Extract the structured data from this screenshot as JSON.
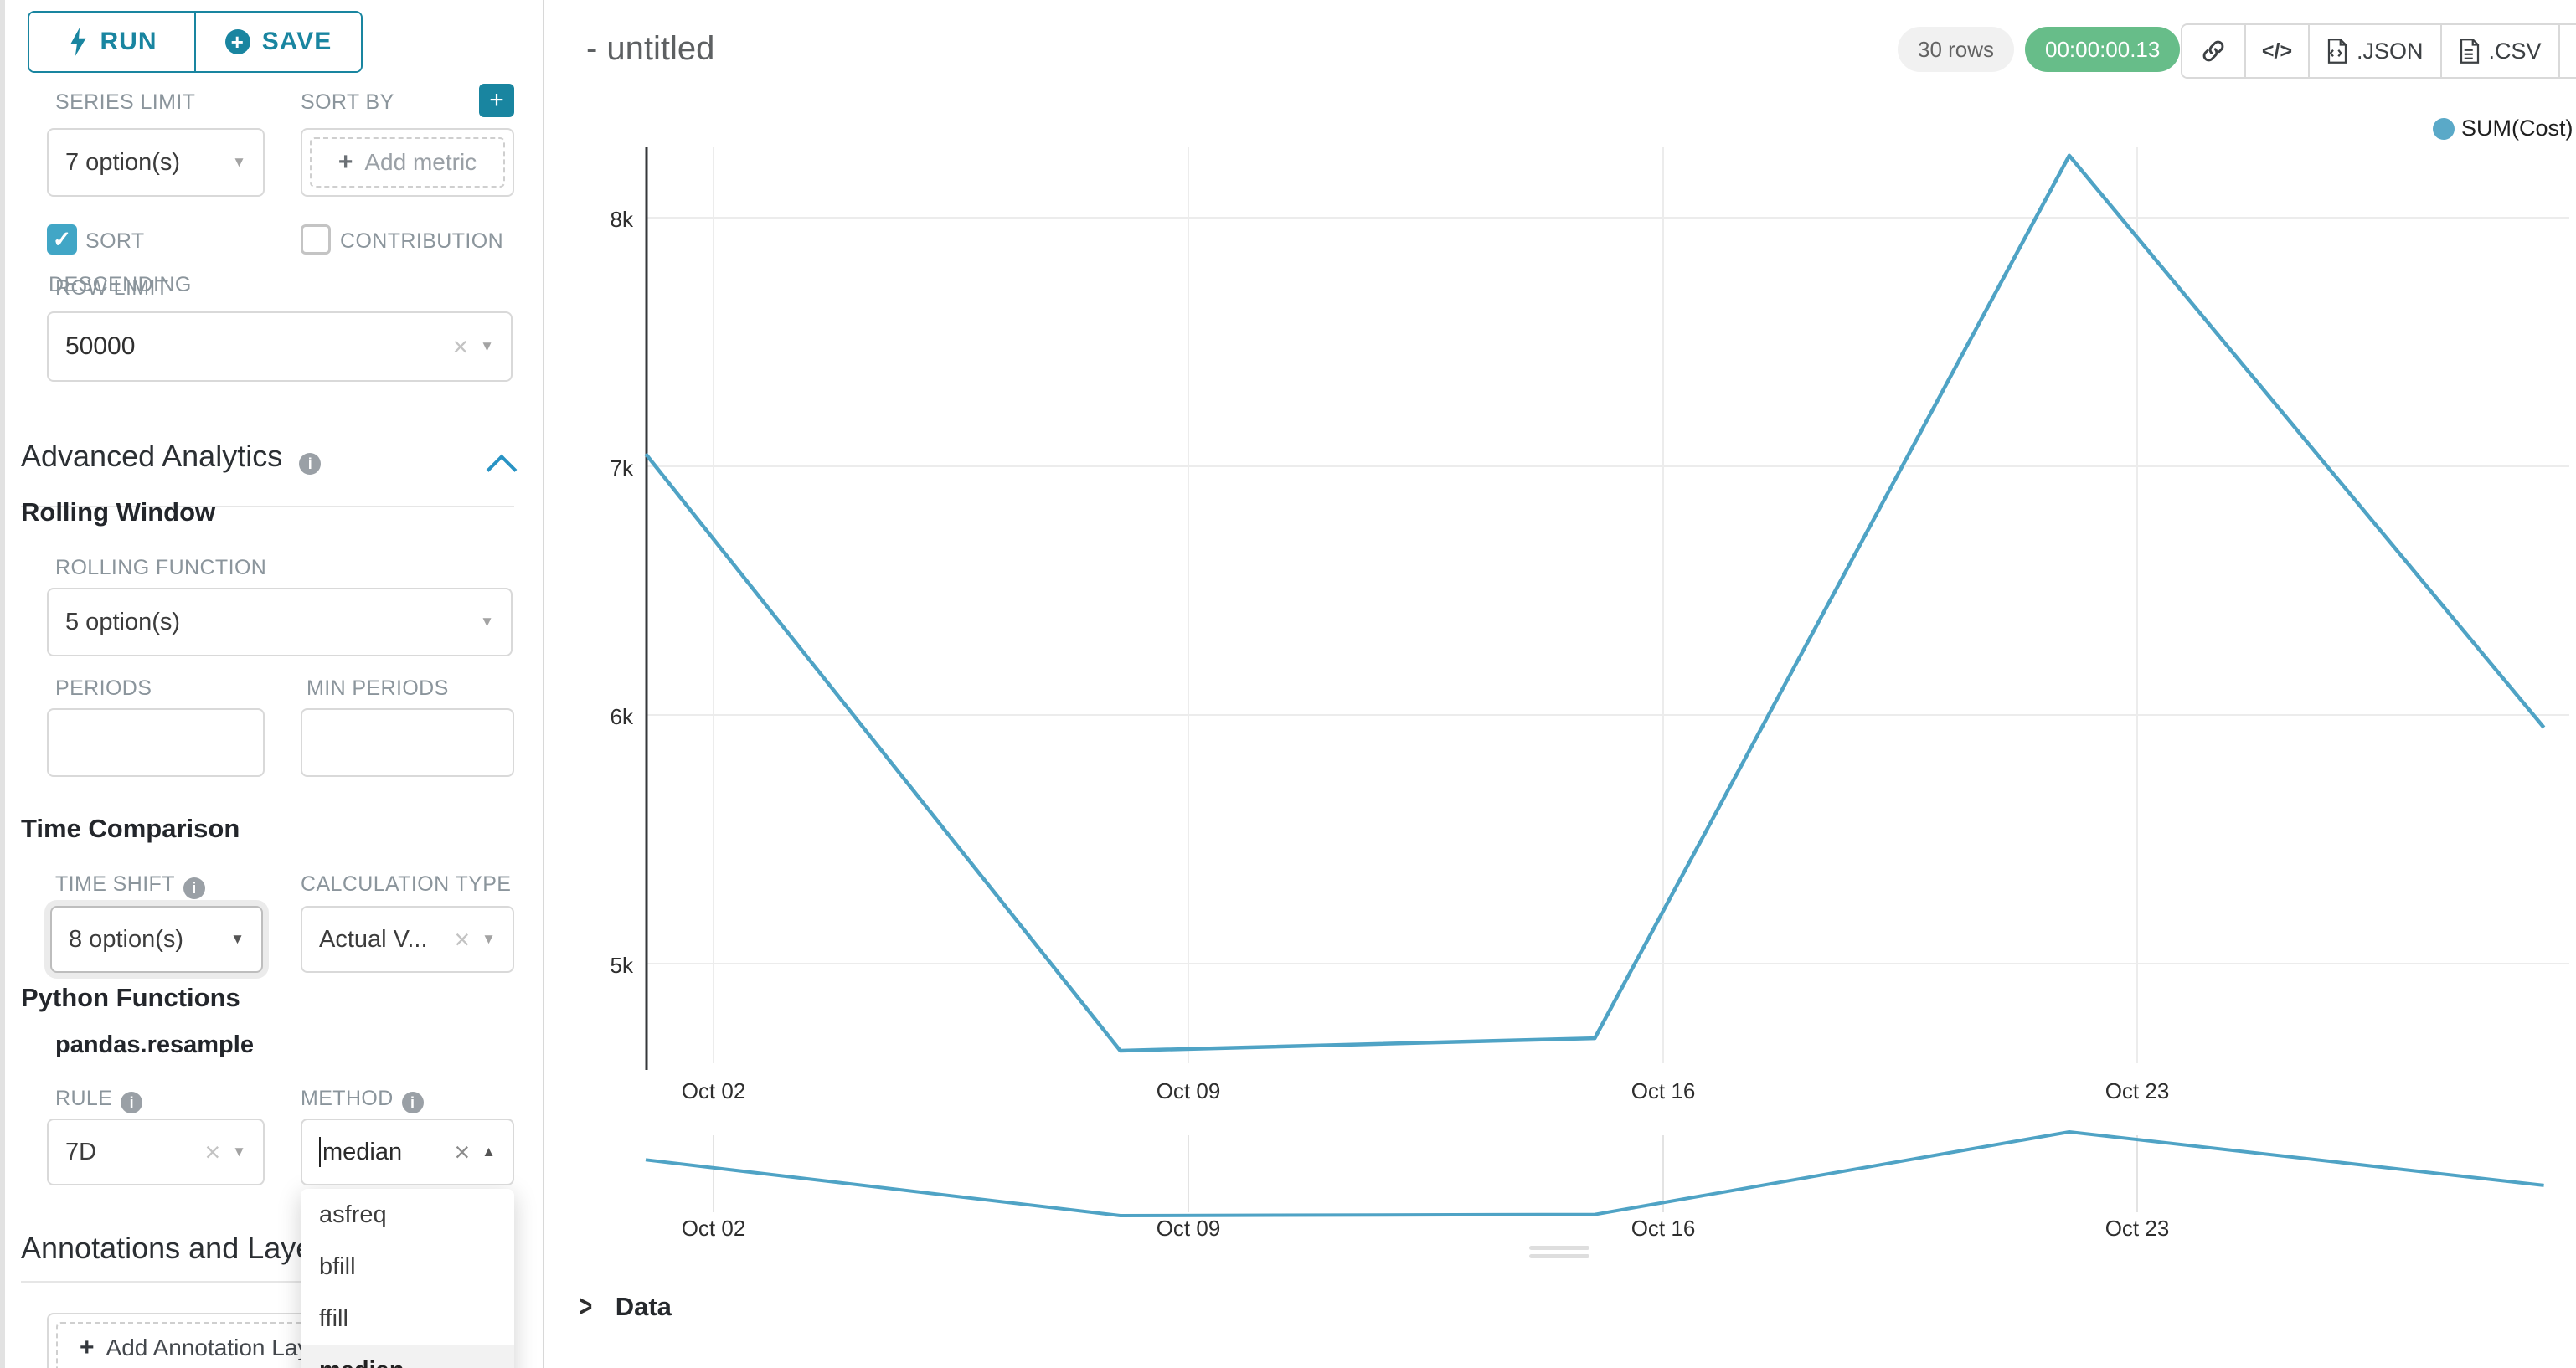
{
  "colors": {
    "accent": "#1985a0",
    "series_line": "#4fa3c5",
    "legend_dot": "#5aa9c8",
    "timer_green": "#67bd89",
    "checkbox_blue": "#41a6c6",
    "chevron_blue": "#2893c4"
  },
  "icons": {
    "plus": "+",
    "check": "✓",
    "caret_down": "▼",
    "caret_up": "▲",
    "clear": "×",
    "code": "</>",
    "info": "i",
    "chevron_right": ">"
  },
  "toolbar": {
    "run_label": "RUN",
    "save_label": "SAVE"
  },
  "controls": {
    "series_limit": {
      "label": "SERIES LIMIT",
      "value": "7 option(s)"
    },
    "sort_by": {
      "label": "SORT BY",
      "placeholder": "Add metric"
    },
    "sort_descending": {
      "label_line1": "SORT",
      "label_line2": "DESCENDING",
      "checked": true
    },
    "contribution": {
      "label": "CONTRIBUTION",
      "checked": false
    },
    "row_limit": {
      "label": "ROW LIMIT",
      "value": "50000"
    },
    "advanced_analytics_title": "Advanced Analytics",
    "rolling_window_title": "Rolling Window",
    "rolling_function": {
      "label": "ROLLING FUNCTION",
      "value": "5 option(s)"
    },
    "periods": {
      "label": "PERIODS",
      "value": ""
    },
    "min_periods": {
      "label": "MIN PERIODS",
      "value": ""
    },
    "time_comparison_title": "Time Comparison",
    "time_shift": {
      "label": "TIME SHIFT",
      "value": "8 option(s)"
    },
    "calculation_type": {
      "label": "CALCULATION TYPE",
      "value": "Actual V..."
    },
    "python_functions_title": "Python Functions",
    "python_functions_subtitle": "pandas.resample",
    "rule": {
      "label": "RULE",
      "value": "7D"
    },
    "method": {
      "label": "METHOD",
      "value": "median",
      "options": [
        "asfreq",
        "bfill",
        "ffill",
        "median"
      ],
      "highlighted_option": "median"
    },
    "annotations_title": "Annotations and Layers",
    "add_annotation_label": "Add Annotation Layer"
  },
  "header": {
    "title": "- untitled",
    "rows_badge": "30 rows",
    "timer": "00:00:00.13",
    "export_json": ".JSON",
    "export_csv": ".CSV"
  },
  "legend": {
    "label": "SUM(Cost)"
  },
  "panels": {
    "data_label": "Data"
  },
  "chart_data": {
    "type": "line",
    "title": "- untitled",
    "series": [
      {
        "name": "SUM(Cost)",
        "x": [
          "Oct 01",
          "Oct 08",
          "Oct 15",
          "Oct 22",
          "Oct 29"
        ],
        "values": [
          7050,
          4650,
          4700,
          8250,
          5950
        ]
      }
    ],
    "x_offsets_days": [
      0,
      7,
      14,
      21,
      28
    ],
    "x_tick_labels": [
      "Oct 02",
      "Oct 09",
      "Oct 16",
      "Oct 23"
    ],
    "y_tick_labels": [
      "8k",
      "7k",
      "6k",
      "5k"
    ],
    "y_ticks": [
      8000,
      7000,
      6000,
      5000
    ],
    "ylim": [
      4600,
      8450
    ],
    "grid": true,
    "legend_position": "top-right",
    "line_color": "#4fa3c5",
    "has_minimap": true
  }
}
